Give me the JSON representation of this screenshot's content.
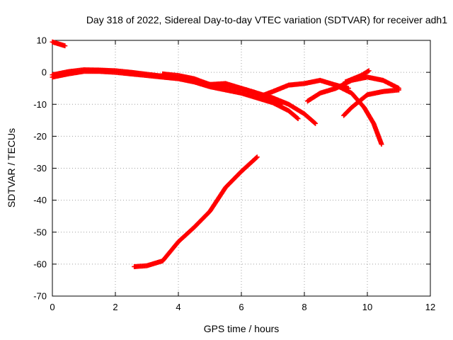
{
  "chart_data": {
    "type": "scatter",
    "title": "Day 318 of 2022, Sidereal Day-to-day VTEC variation (SDTVAR) for receiver adh1",
    "xlabel": "GPS time / hours",
    "ylabel": "SDTVAR / TECUs",
    "xlim": [
      0,
      12
    ],
    "ylim": [
      -70,
      10
    ],
    "xticks": [
      "0",
      "2",
      "4",
      "6",
      "8",
      "10",
      "12"
    ],
    "yticks": [
      "10",
      "0",
      "-10",
      "-20",
      "-30",
      "-40",
      "-50",
      "-60",
      "-70"
    ],
    "grid": true,
    "marker": "+",
    "color": "#ff0000",
    "series": [
      {
        "name": "arc-a",
        "x": [
          0.0,
          0.4
        ],
        "y": [
          9.5,
          8.3
        ]
      },
      {
        "name": "arc-b",
        "x": [
          0.0,
          0.5,
          1.0,
          1.5,
          2.0,
          2.5,
          3.0,
          3.5,
          4.0,
          4.5,
          5.0,
          5.5,
          6.0,
          6.5,
          7.0,
          7.5,
          7.8
        ],
        "y": [
          -1.5,
          -0.5,
          0.3,
          0.3,
          0.0,
          -0.5,
          -1.0,
          -1.5,
          -2.0,
          -3.0,
          -4.5,
          -5.5,
          -6.5,
          -8.0,
          -9.5,
          -12.0,
          -14.5
        ]
      },
      {
        "name": "arc-c",
        "x": [
          0.0,
          0.5,
          1.0,
          1.5,
          2.0,
          2.5,
          3.0,
          3.5,
          4.0,
          4.5,
          5.0,
          5.5,
          6.0,
          6.5,
          7.0,
          7.5,
          8.0,
          8.35
        ],
        "y": [
          -0.8,
          0.2,
          0.8,
          0.7,
          0.5,
          0.0,
          -0.6,
          -1.2,
          -1.8,
          -2.5,
          -3.8,
          -4.2,
          -5.0,
          -6.5,
          -8.0,
          -10.0,
          -13.0,
          -16.0
        ]
      },
      {
        "name": "arc-d",
        "x": [
          3.5,
          4.0,
          4.5,
          5.0,
          5.5,
          6.0,
          6.5,
          7.0,
          7.3
        ],
        "y": [
          -0.5,
          -1.0,
          -2.0,
          -3.8,
          -3.5,
          -5.0,
          -6.5,
          -8.5,
          -9.5
        ]
      },
      {
        "name": "arc-e",
        "x": [
          6.6,
          7.0,
          7.5,
          8.0,
          8.5,
          9.0,
          9.4
        ],
        "y": [
          -7.5,
          -6.0,
          -4.0,
          -3.5,
          -2.5,
          -4.0,
          -5.0
        ]
      },
      {
        "name": "arc-f",
        "x": [
          8.1,
          8.5,
          9.0,
          9.5,
          10.0,
          10.5,
          11.0
        ],
        "y": [
          -9.0,
          -6.5,
          -5.0,
          -2.5,
          -1.5,
          -2.5,
          -5.0
        ]
      },
      {
        "name": "arc-g",
        "x": [
          9.0,
          9.5,
          9.9,
          10.2,
          10.45
        ],
        "y": [
          -4.0,
          -6.5,
          -11.0,
          -16.0,
          -22.5
        ]
      },
      {
        "name": "arc-h",
        "x": [
          9.25,
          9.5,
          10.0,
          10.5,
          11.0
        ],
        "y": [
          -13.5,
          -11.0,
          -7.0,
          -6.0,
          -5.5
        ]
      },
      {
        "name": "arc-i",
        "x": [
          9.3,
          9.6,
          9.8,
          10.05
        ],
        "y": [
          -3.0,
          -1.8,
          -1.0,
          0.5
        ]
      },
      {
        "name": "arc-j",
        "x": [
          2.6,
          3.0,
          3.5,
          4.0,
          4.5,
          5.0,
          5.5,
          6.0,
          6.5
        ],
        "y": [
          -60.8,
          -60.5,
          -59.0,
          -53.0,
          -48.5,
          -43.5,
          -36.0,
          -31.0,
          -26.5
        ]
      }
    ]
  }
}
